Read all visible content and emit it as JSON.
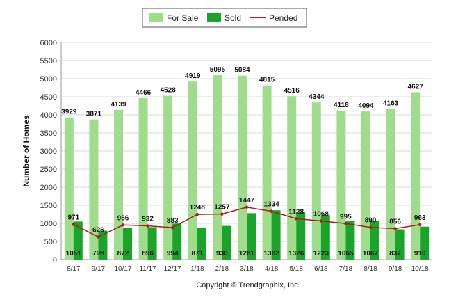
{
  "chart_data": {
    "type": "bar",
    "categories": [
      "8/17",
      "9/17",
      "10/17",
      "11/17",
      "12/17",
      "1/18",
      "2/18",
      "3/18",
      "4/18",
      "5/18",
      "6/18",
      "7/18",
      "8/18",
      "9/18",
      "10/18"
    ],
    "series": [
      {
        "name": "For Sale",
        "type": "bar",
        "color": "#9fdc8c",
        "values": [
          3929,
          3871,
          4139,
          4466,
          4528,
          4919,
          5095,
          5084,
          4815,
          4516,
          4344,
          4118,
          4094,
          4163,
          4627
        ]
      },
      {
        "name": "Sold",
        "type": "bar",
        "color": "#1aa52a",
        "values": [
          1051,
          798,
          872,
          896,
          994,
          871,
          930,
          1281,
          1362,
          1326,
          1223,
          1065,
          1067,
          837,
          910
        ]
      },
      {
        "name": "Pended",
        "type": "line",
        "color": "#b31a1a",
        "values": [
          971,
          626,
          956,
          932,
          883,
          1248,
          1257,
          1447,
          1334,
          1128,
          1068,
          995,
          890,
          856,
          963
        ]
      }
    ],
    "ylabel": "Number of Homes",
    "xlabel": "",
    "ylim": [
      0,
      6000
    ],
    "yticks": [
      0,
      500,
      1000,
      1500,
      2000,
      2500,
      3000,
      3500,
      4000,
      4500,
      5000,
      5500,
      6000
    ],
    "grid": true,
    "legend_position": "top-center"
  },
  "footer": {
    "copyright": "Copyright © Trendgraphix, Inc."
  }
}
